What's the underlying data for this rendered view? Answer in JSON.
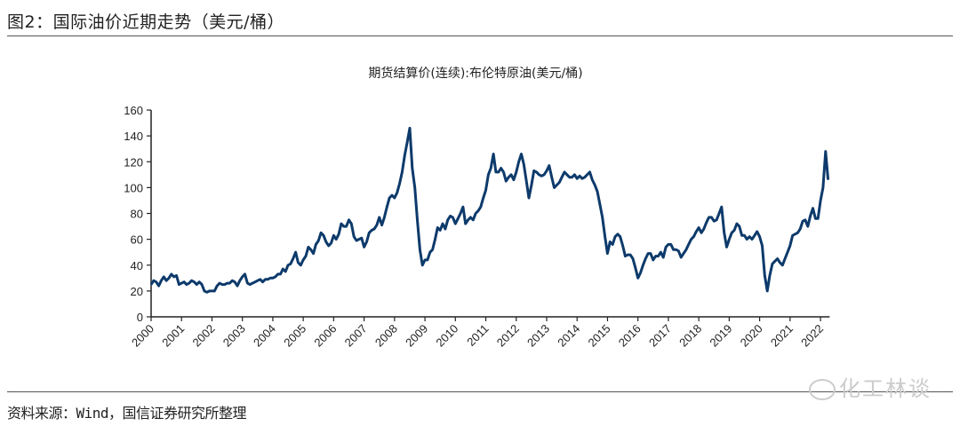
{
  "figure_title": "图2：国际油价近期走势（美元/桶）",
  "source": "资料来源：Wind，国信证券研究所整理",
  "watermark": "化工林谈",
  "colors": {
    "line": "#0d3a6b",
    "axis": "#222222",
    "rule": "#555555"
  },
  "chart_data": {
    "type": "line",
    "title": "期货结算价(连续):布伦特原油(美元/桶)",
    "xlabel": "",
    "ylabel": "",
    "ylim": [
      0,
      160
    ],
    "yticks": [
      0,
      20,
      40,
      60,
      80,
      100,
      120,
      140,
      160
    ],
    "xticks": [
      "2000",
      "2001",
      "2002",
      "2003",
      "2004",
      "2005",
      "2006",
      "2007",
      "2008",
      "2009",
      "2010",
      "2011",
      "2012",
      "2013",
      "2014",
      "2015",
      "2016",
      "2017",
      "2018",
      "2019",
      "2020",
      "2021",
      "2022"
    ],
    "grid": false,
    "legend": "none",
    "series": [
      {
        "name": "布伦特原油",
        "start": "2000-01",
        "frequency": "monthly",
        "values": [
          25,
          28,
          27,
          24,
          28,
          31,
          28,
          30,
          33,
          31,
          32,
          25,
          26,
          27,
          25,
          26,
          28,
          27,
          25,
          27,
          25,
          20,
          19,
          20,
          20,
          20,
          24,
          26,
          25,
          25,
          26,
          26,
          28,
          27,
          24,
          28,
          31,
          33,
          26,
          25,
          26,
          27,
          28,
          29,
          27,
          29,
          29,
          30,
          30,
          31,
          33,
          33,
          37,
          35,
          40,
          41,
          45,
          50,
          42,
          40,
          44,
          47,
          54,
          52,
          49,
          56,
          59,
          65,
          63,
          58,
          55,
          57,
          63,
          60,
          64,
          72,
          70,
          70,
          75,
          72,
          62,
          59,
          60,
          61,
          54,
          58,
          65,
          67,
          68,
          71,
          77,
          71,
          77,
          85,
          92,
          94,
          92,
          96,
          103,
          112,
          125,
          135,
          146,
          115,
          100,
          75,
          52,
          40,
          44,
          44,
          50,
          52,
          60,
          69,
          67,
          72,
          68,
          75,
          78,
          77,
          72,
          76,
          80,
          85,
          72,
          75,
          77,
          75,
          80,
          82,
          85,
          92,
          98,
          110,
          115,
          126,
          112,
          112,
          115,
          112,
          105,
          108,
          110,
          106,
          112,
          120,
          126,
          118,
          105,
          92,
          102,
          113,
          112,
          110,
          109,
          110,
          113,
          117,
          108,
          100,
          102,
          104,
          108,
          112,
          110,
          108,
          108,
          110,
          107,
          109,
          107,
          108,
          110,
          112,
          106,
          102,
          97,
          87,
          77,
          62,
          49,
          58,
          56,
          62,
          64,
          62,
          55,
          47,
          48,
          48,
          45,
          38,
          30,
          34,
          40,
          45,
          49,
          49,
          44,
          47,
          47,
          50,
          46,
          54,
          56,
          56,
          52,
          52,
          51,
          46,
          49,
          52,
          56,
          60,
          62,
          66,
          69,
          65,
          68,
          73,
          77,
          77,
          74,
          75,
          80,
          85,
          65,
          54,
          60,
          65,
          67,
          72,
          70,
          63,
          63,
          60,
          62,
          60,
          63,
          66,
          62,
          55,
          32,
          20,
          32,
          41,
          43,
          45,
          42,
          40,
          45,
          50,
          55,
          63,
          64,
          65,
          68,
          74,
          75,
          70,
          78,
          84,
          76,
          76,
          90,
          100,
          128,
          106
        ]
      }
    ]
  }
}
